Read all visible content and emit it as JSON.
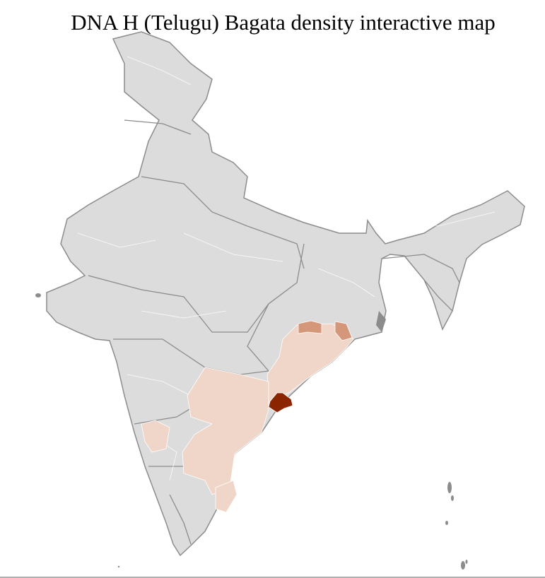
{
  "title": "DNA H (Telugu) Bagata density interactive map",
  "colors": {
    "no_data": "#dcdcdc",
    "district_border": "#ffffff",
    "state_border": "#8c8c8c",
    "low_density": "#f0d6c8",
    "medium_density": "#d4977a",
    "high_density": "#8b2500"
  },
  "regions": [
    {
      "name": "",
      "level": "high"
    },
    {
      "name": "",
      "level": "medium"
    },
    {
      "name": "",
      "level": "low"
    }
  ]
}
